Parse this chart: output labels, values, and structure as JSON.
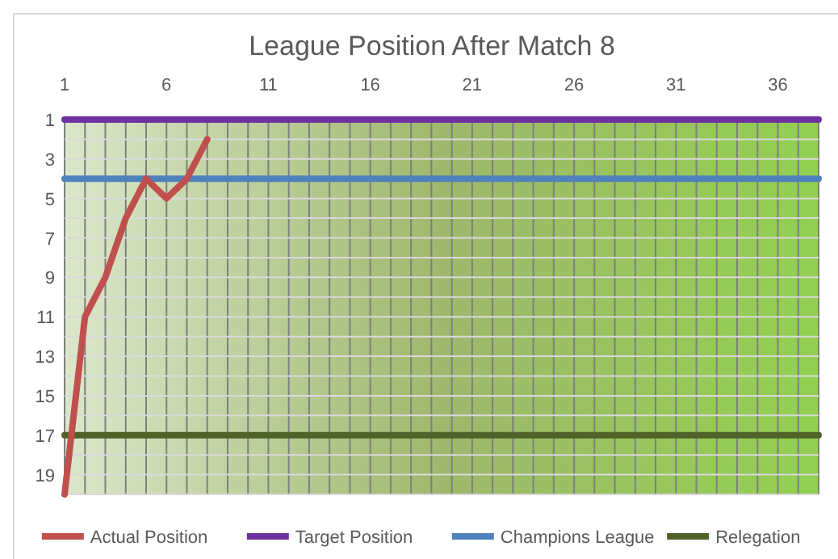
{
  "chart_data": {
    "type": "line",
    "title": "League Position After Match 8",
    "xlim": [
      1,
      38
    ],
    "xticks": [
      1,
      {
        "value": 2,
        "label": null
      },
      {
        "value": 3,
        "label": null
      },
      {
        "value": 4,
        "label": null
      },
      {
        "value": 5,
        "label": null
      },
      6,
      {
        "value": 7,
        "label": null
      },
      {
        "value": 8,
        "label": null
      },
      {
        "value": 9,
        "label": null
      },
      {
        "value": 10,
        "label": null
      },
      11,
      {
        "value": 12,
        "label": null
      },
      {
        "value": 13,
        "label": null
      },
      {
        "value": 14,
        "label": null
      },
      {
        "value": 15,
        "label": null
      },
      16,
      {
        "value": 17,
        "label": null
      },
      {
        "value": 18,
        "label": null
      },
      {
        "value": 19,
        "label": null
      },
      {
        "value": 20,
        "label": null
      },
      21,
      {
        "value": 22,
        "label": null
      },
      {
        "value": 23,
        "label": null
      },
      {
        "value": 24,
        "label": null
      },
      {
        "value": 25,
        "label": null
      },
      26,
      {
        "value": 27,
        "label": null
      },
      {
        "value": 28,
        "label": null
      },
      {
        "value": 29,
        "label": null
      },
      {
        "value": 30,
        "label": null
      },
      31,
      {
        "value": 32,
        "label": null
      },
      {
        "value": 33,
        "label": null
      },
      {
        "value": 34,
        "label": null
      },
      {
        "value": 35,
        "label": null
      },
      36,
      {
        "value": 37,
        "label": null
      },
      {
        "value": 38,
        "label": null
      }
    ],
    "ylim": [
      20,
      1
    ],
    "yticks": [
      1,
      {
        "value": 2,
        "label": null
      },
      3,
      {
        "value": 4,
        "label": null
      },
      5,
      {
        "value": 6,
        "label": null
      },
      7,
      {
        "value": 8,
        "label": null
      },
      9,
      {
        "value": 10,
        "label": null
      },
      11,
      {
        "value": 12,
        "label": null
      },
      13,
      {
        "value": 14,
        "label": null
      },
      15,
      {
        "value": 16,
        "label": null
      },
      17,
      {
        "value": 18,
        "label": null
      },
      19,
      {
        "value": 20,
        "label": null
      }
    ],
    "grid": true,
    "legend": "bottom",
    "marker": "none",
    "line_style": "solid",
    "series": [
      {
        "name": "Actual Position",
        "color": "#c0504d",
        "x": [
          1,
          2,
          3,
          4,
          5,
          6,
          7,
          8
        ],
        "values": [
          20,
          11,
          9,
          6,
          4,
          5,
          4,
          2
        ]
      },
      {
        "name": "Target Position",
        "color": "#7030a0",
        "x": [
          1,
          38
        ],
        "values": [
          1,
          1
        ]
      },
      {
        "name": "Champions League",
        "color": "#4f81bd",
        "x": [
          1,
          38
        ],
        "values": [
          4,
          4
        ]
      },
      {
        "name": "Relegation",
        "color": "#4f6228",
        "x": [
          1,
          38
        ],
        "values": [
          17,
          17
        ]
      }
    ]
  }
}
